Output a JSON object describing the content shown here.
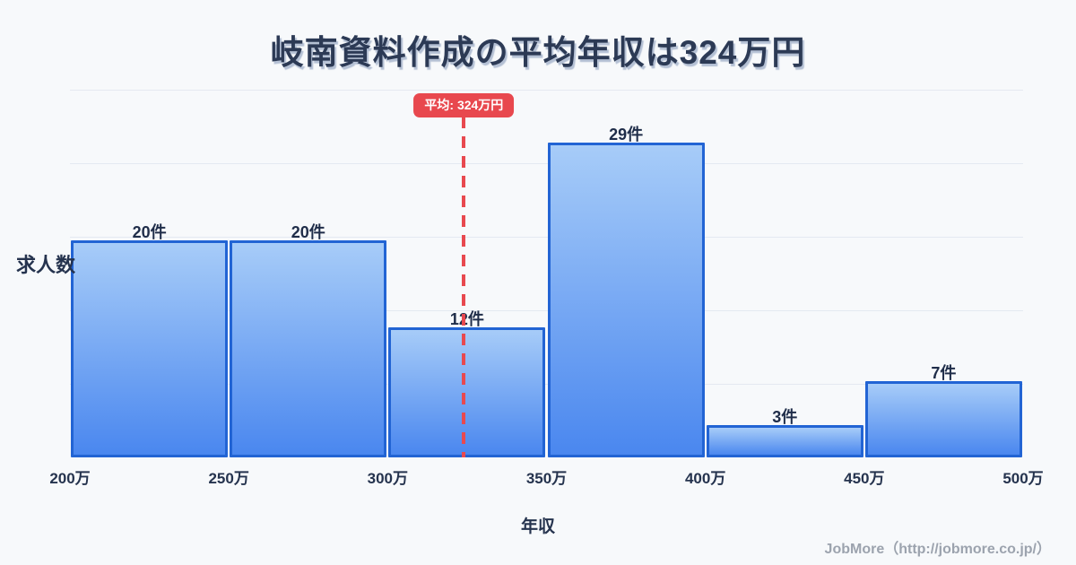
{
  "title": "岐南資料作成の平均年収は324万円",
  "average": {
    "label": "平均: 324万円",
    "value": 324
  },
  "axes": {
    "y_title": "求人数",
    "x_title": "年収"
  },
  "footer": "JobMore（http://jobmore.co.jp/）",
  "chart_data": {
    "type": "bar",
    "subtype": "histogram",
    "title": "岐南資料作成の平均年収は324万円",
    "xlabel": "年収",
    "ylabel": "求人数",
    "x_tick_labels": [
      "200万",
      "250万",
      "300万",
      "350万",
      "400万",
      "450万",
      "500万"
    ],
    "bin_edges": [
      200,
      250,
      300,
      350,
      400,
      450,
      500
    ],
    "values": [
      20,
      20,
      12,
      29,
      3,
      7
    ],
    "bar_labels": [
      "20件",
      "20件",
      "12件",
      "29件",
      "3件",
      "7件"
    ],
    "average_line": {
      "x": 324,
      "label": "平均: 324万円"
    },
    "x_range": [
      200,
      500
    ],
    "grid": "horizontal",
    "legend": "none",
    "colors": {
      "background": "#f7f9fb",
      "bar_fill_top": "#a7ccf8",
      "bar_fill_bottom": "#4a87ef",
      "bar_border": "#2264d4",
      "average_line": "#e8494f",
      "average_badge_bg": "#e8484e",
      "average_badge_text": "#ffffff",
      "title_text": "#2c3a55",
      "axis_text": "#25334e",
      "gridline": "#e4e9f1",
      "footer_text": "#9ca3ae"
    }
  }
}
